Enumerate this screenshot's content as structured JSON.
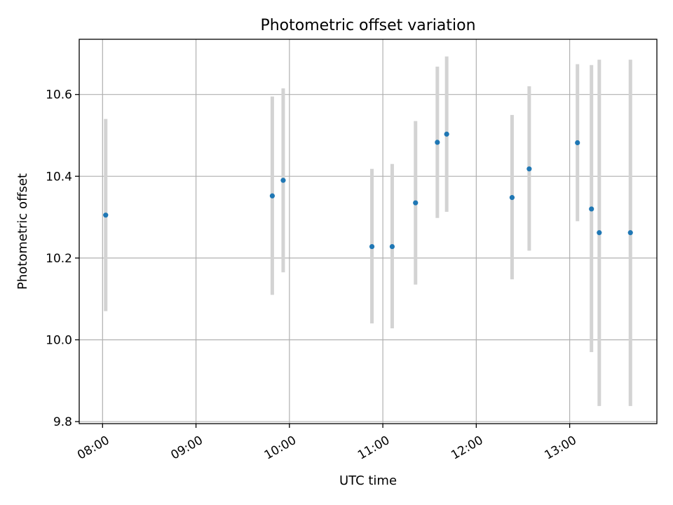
{
  "chart_data": {
    "type": "scatter",
    "title": "Photometric offset variation",
    "xlabel": "UTC time",
    "ylabel": "Photometric offset",
    "xlim": [
      "07:45",
      "13:56"
    ],
    "ylim": [
      9.795,
      10.735
    ],
    "x_ticks": [
      "08:00",
      "09:00",
      "10:00",
      "11:00",
      "12:00",
      "13:00"
    ],
    "y_ticks": [
      "9.8",
      "10.0",
      "10.2",
      "10.4",
      "10.6"
    ],
    "grid": true,
    "marker_color": "#1f77b4",
    "errorbar_color": "#d3d3d3",
    "points": [
      {
        "x": "08:02",
        "y": 10.305,
        "ylow": 10.07,
        "yhigh": 10.54
      },
      {
        "x": "09:49",
        "y": 10.352,
        "ylow": 10.11,
        "yhigh": 10.595
      },
      {
        "x": "09:56",
        "y": 10.39,
        "ylow": 10.165,
        "yhigh": 10.615
      },
      {
        "x": "10:53",
        "y": 10.228,
        "ylow": 10.04,
        "yhigh": 10.418
      },
      {
        "x": "11:06",
        "y": 10.228,
        "ylow": 10.028,
        "yhigh": 10.43
      },
      {
        "x": "11:21",
        "y": 10.335,
        "ylow": 10.135,
        "yhigh": 10.535
      },
      {
        "x": "11:35",
        "y": 10.483,
        "ylow": 10.298,
        "yhigh": 10.668
      },
      {
        "x": "11:41",
        "y": 10.503,
        "ylow": 10.313,
        "yhigh": 10.693
      },
      {
        "x": "12:23",
        "y": 10.348,
        "ylow": 10.148,
        "yhigh": 10.55
      },
      {
        "x": "12:34",
        "y": 10.418,
        "ylow": 10.218,
        "yhigh": 10.62
      },
      {
        "x": "13:05",
        "y": 10.482,
        "ylow": 10.29,
        "yhigh": 10.674
      },
      {
        "x": "13:14",
        "y": 10.32,
        "ylow": 9.97,
        "yhigh": 10.672
      },
      {
        "x": "13:19",
        "y": 10.262,
        "ylow": 9.838,
        "yhigh": 10.685
      },
      {
        "x": "13:39",
        "y": 10.262,
        "ylow": 9.838,
        "yhigh": 10.685
      }
    ]
  }
}
